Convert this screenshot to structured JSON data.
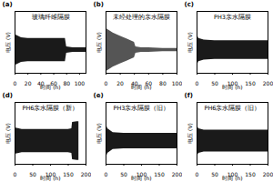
{
  "chart_data": [
    {
      "type": "band",
      "title": "(a)",
      "annotation": "玻璃纤维隔膜",
      "x_label": "时间 (h)",
      "y_label": "电压 (V)",
      "color": "#1a1a1a",
      "x": [
        0,
        10,
        20,
        40,
        60,
        78,
        80,
        90,
        100,
        110
      ],
      "upper": [
        0.2,
        0.16,
        0.15,
        0.15,
        0.15,
        0.15,
        0.04,
        0.03,
        0.03,
        0.03
      ],
      "lower": [
        -0.2,
        -0.16,
        -0.15,
        -0.15,
        -0.15,
        -0.15,
        -0.04,
        -0.03,
        -0.03,
        -0.03
      ],
      "xlim": [
        0,
        110
      ],
      "xticks": [
        0,
        20,
        40,
        60,
        80,
        100
      ],
      "ylim": [
        -0.3,
        0.5
      ],
      "tick_labels": "x"
    },
    {
      "type": "band",
      "title": "(b)",
      "annotation": "未经处理的亲水隔膜",
      "x_label": "时间 (h)",
      "y_label": "电压 (V)",
      "color": "#555555",
      "x": [
        0,
        5,
        10,
        20,
        30,
        40,
        42,
        50,
        60,
        80,
        100
      ],
      "upper": [
        0.28,
        0.25,
        0.22,
        0.18,
        0.14,
        0.1,
        0.04,
        0.03,
        0.03,
        0.02,
        0.02
      ],
      "lower": [
        -0.28,
        -0.25,
        -0.22,
        -0.18,
        -0.14,
        -0.1,
        -0.04,
        -0.03,
        -0.03,
        -0.02,
        -0.02
      ],
      "xlim": [
        0,
        100
      ],
      "xticks": [
        0,
        20,
        40,
        60,
        80,
        100
      ],
      "ylim": [
        -0.3,
        0.5
      ],
      "tick_labels": "x"
    },
    {
      "type": "band",
      "title": "(c)",
      "annotation": "PH3亲水隔膜",
      "x_label": "时间 (h)",
      "y_label": "电压 (V)",
      "color": "#1a1a1a",
      "x": [
        0,
        5,
        20,
        50,
        100,
        150,
        200
      ],
      "upper": [
        0.2,
        0.15,
        0.13,
        0.12,
        0.12,
        0.12,
        0.12
      ],
      "lower": [
        -0.2,
        -0.15,
        -0.13,
        -0.12,
        -0.12,
        -0.12,
        -0.12
      ],
      "xlim": [
        0,
        200
      ],
      "xticks": [
        0,
        50,
        100,
        150,
        200
      ],
      "ylim": [
        -0.3,
        0.5
      ],
      "tick_labels": "x"
    },
    {
      "type": "band",
      "title": "(d)",
      "annotation": "PH6亲水隔膜（新）",
      "x_label": "时间 (h)",
      "y_label": "电压 (V)",
      "color": "#1a1a1a",
      "x": [
        0,
        20,
        50,
        100,
        150,
        160,
        162,
        175,
        180
      ],
      "upper": [
        0.17,
        0.15,
        0.15,
        0.15,
        0.15,
        0.16,
        0.24,
        0.25,
        0.25
      ],
      "lower": [
        -0.17,
        -0.15,
        -0.15,
        -0.15,
        -0.15,
        -0.16,
        -0.24,
        -0.25,
        -0.25
      ],
      "xlim": [
        0,
        200
      ],
      "xticks": [
        0,
        50,
        100,
        150,
        200
      ],
      "ylim": [
        -0.3,
        0.5
      ],
      "tick_labels": "x"
    },
    {
      "type": "band",
      "title": "(e)",
      "annotation": "PH3亲水隔膜（旧）",
      "x_label": "时间 (h)",
      "y_label": "电压 (V)",
      "color": "#1a1a1a",
      "x": [
        0,
        5,
        20,
        50,
        100,
        150,
        200
      ],
      "upper": [
        0.22,
        0.16,
        0.11,
        0.1,
        0.1,
        0.1,
        0.1
      ],
      "lower": [
        -0.22,
        -0.16,
        -0.11,
        -0.1,
        -0.1,
        -0.1,
        -0.1
      ],
      "xlim": [
        0,
        200
      ],
      "xticks": [
        0,
        50,
        100,
        150,
        200
      ],
      "ylim": [
        -0.3,
        0.5
      ],
      "tick_labels": "x"
    },
    {
      "type": "band",
      "title": "(f)",
      "annotation": "PH6亲水隔膜（旧）",
      "x_label": "时间 (h)",
      "y_label": "电压 (V)",
      "color": "#1a1a1a",
      "x": [
        0,
        5,
        20,
        50,
        100,
        150,
        200
      ],
      "upper": [
        0.2,
        0.16,
        0.14,
        0.14,
        0.14,
        0.14,
        0.14
      ],
      "lower": [
        -0.2,
        -0.16,
        -0.14,
        -0.14,
        -0.14,
        -0.14,
        -0.14
      ],
      "xlim": [
        0,
        200
      ],
      "xticks": [
        0,
        50,
        100,
        150,
        200
      ],
      "ylim": [
        -0.3,
        0.5
      ],
      "tick_labels": "x"
    }
  ]
}
